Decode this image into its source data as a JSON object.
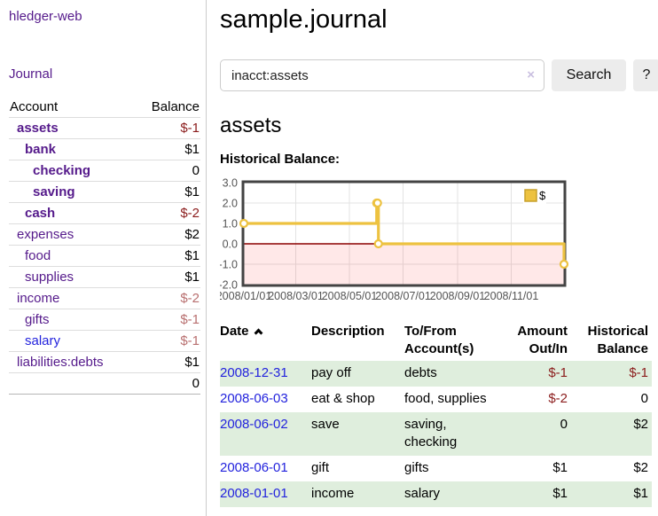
{
  "colors": {
    "purple_link": "#551a8b",
    "blue_link": "#2323dd",
    "negative_dark": "#8b1c1c",
    "negative_muted": "#b86f6f",
    "row_green": "#dfeedd",
    "chart_gold": "#edc240",
    "chart_gold_border": "#c7a12c",
    "chart_zero_line": "#8b0000",
    "chart_border": "#434343",
    "chart_grid": "#e3e3e3",
    "chart_tick_text": "#545454",
    "chart_negative_fill": "rgba(255,0,0,0.09)"
  },
  "sidebar": {
    "brand": "hledger-web",
    "journal_link": "Journal",
    "accounts_table": {
      "headers": {
        "account": "Account",
        "balance": "Balance"
      },
      "accounts": [
        {
          "name": "assets",
          "depth": 0,
          "bold": true,
          "balance": "$-1",
          "negative": true
        },
        {
          "name": "bank",
          "depth": 1,
          "bold": true,
          "balance": "$1",
          "negative": false
        },
        {
          "name": "checking",
          "depth": 2,
          "bold": true,
          "balance": "0",
          "negative": false
        },
        {
          "name": "saving",
          "depth": 2,
          "bold": true,
          "balance": "$1",
          "negative": false
        },
        {
          "name": "cash",
          "depth": 1,
          "bold": true,
          "balance": "$-2",
          "negative": true
        },
        {
          "name": "expenses",
          "depth": 0,
          "bold": false,
          "balance": "$2",
          "negative": false
        },
        {
          "name": "food",
          "depth": 1,
          "bold": false,
          "balance": "$1",
          "negative": false
        },
        {
          "name": "supplies",
          "depth": 1,
          "bold": false,
          "balance": "$1",
          "negative": false
        },
        {
          "name": "income",
          "depth": 0,
          "bold": false,
          "balance": "$-2",
          "negative": true
        },
        {
          "name": "gifts",
          "depth": 1,
          "bold": false,
          "balance": "$-1",
          "negative": true
        },
        {
          "name": "salary",
          "depth": 1,
          "bold": false,
          "balance": "$-1",
          "negative": true,
          "link_color": "blue"
        },
        {
          "name": "liabilities:debts",
          "depth": 0,
          "bold": false,
          "balance": "$1",
          "negative": false
        }
      ],
      "total": "0"
    }
  },
  "header": {
    "title": "sample.journal"
  },
  "search": {
    "value": "inacct:assets",
    "clear_icon": "×",
    "button_label": "Search",
    "help_button_label": "?"
  },
  "account_page": {
    "heading": "assets",
    "chart_label": "Historical Balance:"
  },
  "chart_data": {
    "type": "line",
    "step": true,
    "title": "Historical Balance",
    "series": [
      {
        "name": "$",
        "color": "#edc240",
        "points": [
          [
            "2008-01-01",
            1
          ],
          [
            "2008-06-01",
            2
          ],
          [
            "2008-06-02",
            2
          ],
          [
            "2008-06-03",
            0
          ],
          [
            "2008-12-31",
            -1
          ]
        ]
      }
    ],
    "xlim": [
      "2008-01-01",
      "2008-12-31"
    ],
    "ylim": [
      -2,
      3
    ],
    "yticks": [
      3,
      2,
      1,
      0,
      -1,
      -2
    ],
    "ytick_labels": [
      "3.0",
      "2.0",
      "1.0",
      "0.0",
      "-1.0",
      "-2.0"
    ],
    "xticks": [
      "2008/01/01",
      "2008/03/01",
      "2008/05/01",
      "2008/07/01",
      "2008/09/01",
      "2008/11/01"
    ],
    "legend": {
      "label": "$",
      "position": "top-right"
    },
    "negative_region_shaded": true,
    "grid": true
  },
  "transactions": {
    "headers": [
      {
        "label": "Date",
        "sorted": "asc"
      },
      {
        "label": "Description"
      },
      {
        "label": "To/From Account(s)"
      },
      {
        "label": "Amount Out/In",
        "align": "right"
      },
      {
        "label": "Historical Balance",
        "align": "right"
      }
    ],
    "rows": [
      {
        "date": "2008-12-31",
        "description": "pay off",
        "accounts": "debts",
        "amount": "$-1",
        "balance": "$-1"
      },
      {
        "date": "2008-06-03",
        "description": "eat & shop",
        "accounts": "food, supplies",
        "amount": "$-2",
        "balance": "0"
      },
      {
        "date": "2008-06-02",
        "description": "save",
        "accounts": "saving, checking",
        "amount": "0",
        "balance": "$2"
      },
      {
        "date": "2008-06-01",
        "description": "gift",
        "accounts": "gifts",
        "amount": "$1",
        "balance": "$2"
      },
      {
        "date": "2008-01-01",
        "description": "income",
        "accounts": "salary",
        "amount": "$1",
        "balance": "$1"
      }
    ]
  }
}
